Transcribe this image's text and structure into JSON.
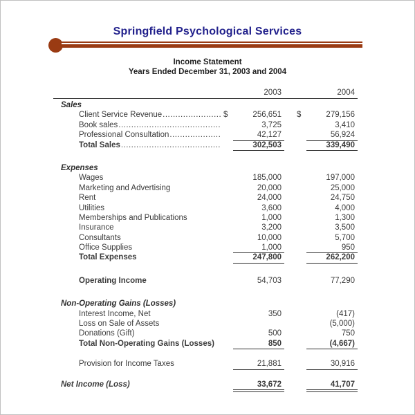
{
  "header": {
    "company": "Springfield Psychological Services",
    "statement_title": "Income Statement",
    "period": "Years Ended December 31, 2003 and 2004"
  },
  "colors": {
    "title_navy": "#22218c",
    "accent_brown": "#9a3b13",
    "body_text": "#3b3b3b",
    "rule_dark": "#2b2b2b",
    "page_border": "#c0c0c0"
  },
  "statement": {
    "columns": [
      "2003",
      "2004"
    ],
    "sections": [
      {
        "heading": "Sales",
        "rows": [
          {
            "label": "Client Service Revenue",
            "indent": true,
            "dots": true,
            "cur1": "$",
            "v1": "256,651",
            "cur2": "$",
            "v2": "279,156"
          },
          {
            "label": "Book sales",
            "indent": true,
            "dots": true,
            "v1": "3,725",
            "v2": "3,410"
          },
          {
            "label": "Professional Consultation",
            "indent": true,
            "dots": true,
            "v1": "42,127",
            "v2": "56,924",
            "underline": "single"
          },
          {
            "label": "Total Sales",
            "indent": true,
            "dots": true,
            "bold": "both",
            "v1": "302,503",
            "v2": "339,490",
            "underline": "single"
          }
        ]
      },
      {
        "heading": "Expenses",
        "rows": [
          {
            "label": "Wages",
            "indent": true,
            "v1": "185,000",
            "v2": "197,000"
          },
          {
            "label": "Marketing and Advertising",
            "indent": true,
            "v1": "20,000",
            "v2": "25,000"
          },
          {
            "label": "Rent",
            "indent": true,
            "v1": "24,000",
            "v2": "24,750"
          },
          {
            "label": "Utilities",
            "indent": true,
            "v1": "3,600",
            "v2": "4,000"
          },
          {
            "label": "Memberships and Publications",
            "indent": true,
            "v1": "1,000",
            "v2": "1,300"
          },
          {
            "label": "Insurance",
            "indent": true,
            "v1": "3,200",
            "v2": "3,500"
          },
          {
            "label": "Consultants",
            "indent": true,
            "v1": "10,000",
            "v2": "5,700"
          },
          {
            "label": "Office Supplies",
            "indent": true,
            "v1": "1,000",
            "v2": "950",
            "underline": "single"
          },
          {
            "label": "Total Expenses",
            "indent": true,
            "bold": "both",
            "v1": "247,800",
            "v2": "262,200",
            "underline": "single"
          }
        ]
      },
      {
        "rows": [
          {
            "label": "Operating Income",
            "indent": true,
            "bold": "label",
            "v1": "54,703",
            "v2": "77,290"
          }
        ]
      },
      {
        "heading": "Non-Operating Gains (Losses)",
        "rows": [
          {
            "label": "Interest Income, Net",
            "indent": true,
            "v1": "350",
            "v2": "(417)"
          },
          {
            "label": "Loss on Sale of Assets",
            "indent": true,
            "v1": "",
            "v2": "(5,000)"
          },
          {
            "label": "Donations (Gift)",
            "indent": true,
            "v1": "500",
            "v2": "750"
          },
          {
            "label": "Total Non-Operating Gains (Losses)",
            "indent": true,
            "bold": "both",
            "v1": "850",
            "v2": "(4,667)",
            "underline": "single"
          }
        ]
      },
      {
        "rows": [
          {
            "label": "Provision for Income Taxes",
            "indent": true,
            "v1": "21,881",
            "v2": "30,916",
            "underline": "single"
          }
        ]
      },
      {
        "rows": [
          {
            "label": "Net Income (Loss)",
            "italic": true,
            "bold": "both",
            "v1": "33,672",
            "v2": "41,707",
            "underline": "double"
          }
        ]
      }
    ]
  }
}
